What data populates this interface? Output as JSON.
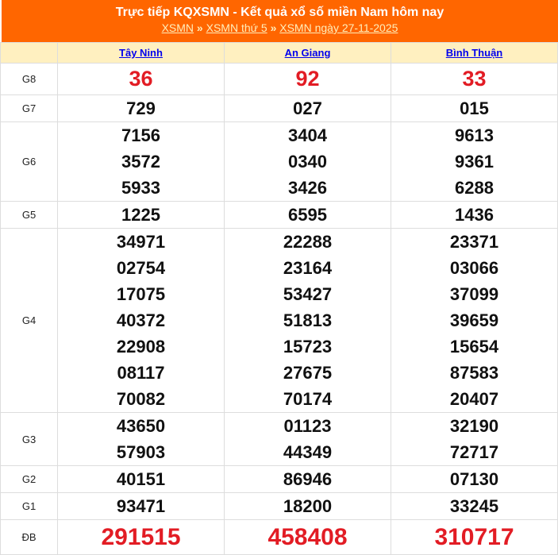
{
  "header": {
    "title": "Trực tiếp KQXSMN - Kết quả xổ số miền Nam hôm nay",
    "breadcrumb": [
      "XSMN",
      "XSMN thứ 5",
      "XSMN ngày 27-11-2025"
    ],
    "separator": "»"
  },
  "provinces": [
    "Tây Ninh",
    "An Giang",
    "Bình Thuận"
  ],
  "prizes": [
    {
      "label": "G8",
      "style": "big",
      "values": [
        [
          "36"
        ],
        [
          "92"
        ],
        [
          "33"
        ]
      ]
    },
    {
      "label": "G7",
      "values": [
        [
          "729"
        ],
        [
          "027"
        ],
        [
          "015"
        ]
      ]
    },
    {
      "label": "G6",
      "values": [
        [
          "7156",
          "3572",
          "5933"
        ],
        [
          "3404",
          "0340",
          "3426"
        ],
        [
          "9613",
          "9361",
          "6288"
        ]
      ]
    },
    {
      "label": "G5",
      "values": [
        [
          "1225"
        ],
        [
          "6595"
        ],
        [
          "1436"
        ]
      ]
    },
    {
      "label": "G4",
      "values": [
        [
          "34971",
          "02754",
          "17075",
          "40372",
          "22908",
          "08117",
          "70082"
        ],
        [
          "22288",
          "23164",
          "53427",
          "51813",
          "15723",
          "27675",
          "70174"
        ],
        [
          "23371",
          "03066",
          "37099",
          "39659",
          "15654",
          "87583",
          "20407"
        ]
      ]
    },
    {
      "label": "G3",
      "values": [
        [
          "43650",
          "57903"
        ],
        [
          "01123",
          "44349"
        ],
        [
          "32190",
          "72717"
        ]
      ]
    },
    {
      "label": "G2",
      "values": [
        [
          "40151"
        ],
        [
          "86946"
        ],
        [
          "07130"
        ]
      ]
    },
    {
      "label": "G1",
      "values": [
        [
          "93471"
        ],
        [
          "18200"
        ],
        [
          "33245"
        ]
      ]
    },
    {
      "label": "ĐB",
      "style": "db",
      "values": [
        [
          "291515"
        ],
        [
          "458408"
        ],
        [
          "310717"
        ]
      ]
    }
  ],
  "colors": {
    "header_bg": "#ff6600",
    "column_header_bg": "#fff0c0",
    "highlight": "#e21c24"
  }
}
